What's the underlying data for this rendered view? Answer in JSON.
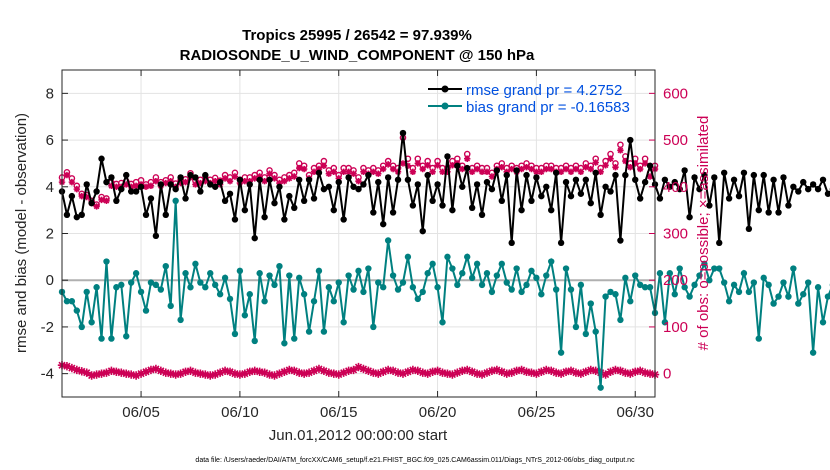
{
  "chart_data": {
    "type": "line",
    "title": "Tropics 25995 / 26542 = 97.939%",
    "subtitle": "RADIOSONDE_U_WIND_COMPONENT @ 150 hPa",
    "xlabel": "Jun.01,2012 00:00:00 start",
    "ylabel": "rmse and bias (model - observation)",
    "ylabel_right": "# of obs: o=possible; ×=assimilated",
    "xlim": [
      1,
      31
    ],
    "ylim": [
      -5,
      9
    ],
    "ylim_right": [
      -50,
      650
    ],
    "x_ticks": [
      5,
      10,
      15,
      20,
      25,
      30
    ],
    "x_tick_labels": [
      "06/05",
      "06/10",
      "06/15",
      "06/20",
      "06/25",
      "06/30"
    ],
    "y_ticks": [
      -4,
      -2,
      0,
      2,
      4,
      6,
      8
    ],
    "y_tick_labels": [
      "-4",
      "-2",
      "0",
      "2",
      "4",
      "6",
      "8"
    ],
    "y_right_ticks": [
      0,
      100,
      200,
      300,
      400,
      500,
      600
    ],
    "y_right_tick_labels": [
      "0",
      "100",
      "200",
      "300",
      "400",
      "500",
      "600"
    ],
    "legend": [
      "rmse grand pr = 4.2752",
      "bias grand pr = -0.16583"
    ],
    "footer": "data file: /Users/raeder/DAI/ATM_forcXX/CAM6_setup/f.e21.FHIST_BGC.f09_025.CAM6assim.011/Diags_NTrS_2012-06/obs_diag_output.nc",
    "colors": {
      "rmse": "#000000",
      "bias": "#008080",
      "counts": "#cc0055",
      "legend_text": "#0050e0",
      "zero_line": "#b0b0b0"
    },
    "x_start": 1.0,
    "x_step": 0.25,
    "series": [
      {
        "name": "rmse",
        "values": [
          3.8,
          2.8,
          3.6,
          2.7,
          2.8,
          4.1,
          3.3,
          3.8,
          5.2,
          4.2,
          4.4,
          3.4,
          3.9,
          4.5,
          3.8,
          3.8,
          4.0,
          2.8,
          3.5,
          1.9,
          4.1,
          2.8,
          4.1,
          3.9,
          4.4,
          3.5,
          4.5,
          4.4,
          3.8,
          4.5,
          4.1,
          4.0,
          4.2,
          3.4,
          3.7,
          2.6,
          4.3,
          3.0,
          4.1,
          1.8,
          4.3,
          2.7,
          4.3,
          3.3,
          4.0,
          2.6,
          3.6,
          3.1,
          4.3,
          3.4,
          4.3,
          3.5,
          4.6,
          3.9,
          4.0,
          3.0,
          4.2,
          2.6,
          4.4,
          4.0,
          3.9,
          4.1,
          4.5,
          2.9,
          4.2,
          2.4,
          4.4,
          2.9,
          4.3,
          6.3,
          4.3,
          3.2,
          4.1,
          2.1,
          4.5,
          3.4,
          4.1,
          3.2,
          5.3,
          3.0,
          4.9,
          4.0,
          4.8,
          3.1,
          4.1,
          2.8,
          4.2,
          3.9,
          4.7,
          3.4,
          4.5,
          1.6,
          4.7,
          3.0,
          4.5,
          3.4,
          4.4,
          3.6,
          4.0,
          3.0,
          4.6,
          1.6,
          4.2,
          3.6,
          4.3,
          3.7,
          4.3,
          3.3,
          4.6,
          2.8,
          4.0,
          3.8,
          4.5,
          1.7,
          4.5,
          6.0,
          4.3,
          3.5,
          4.2,
          4.9,
          4.1,
          3.5,
          4.3,
          4.0,
          4.2,
          3.9,
          4.7,
          2.7,
          4.4,
          3.9,
          4.5,
          3.2,
          4.4,
          1.6,
          4.6,
          3.5,
          4.3,
          3.6,
          4.6,
          2.2,
          4.5,
          3.0,
          4.5,
          2.9,
          4.3,
          2.9,
          4.4,
          3.2,
          4.0,
          3.8,
          4.2,
          3.9,
          4.1,
          3.9,
          4.3,
          3.7,
          3.9,
          4.4,
          4.0,
          3.3,
          4.5,
          2.4,
          4.0,
          3.6,
          3.9,
          2.8,
          5.8,
          4.2,
          3.0,
          3.8,
          4.6,
          1.5,
          4.5,
          3.6,
          4.6,
          3.6,
          4.4,
          2.6
        ]
      },
      {
        "name": "bias",
        "values": [
          -0.5,
          -0.9,
          -0.9,
          -1.3,
          -2.0,
          -0.5,
          -1.8,
          -0.3,
          -2.5,
          0.8,
          -2.5,
          -0.3,
          -0.2,
          -2.4,
          -0.1,
          0.3,
          -0.5,
          -1.3,
          -0.1,
          -0.2,
          -0.4,
          0.6,
          -1.1,
          3.4,
          -1.7,
          0.3,
          -0.3,
          0.7,
          -0.1,
          -0.3,
          0.3,
          -0.2,
          -0.6,
          0.1,
          -0.8,
          -2.3,
          0.4,
          -1.5,
          -0.6,
          -2.6,
          0.3,
          -0.9,
          0.2,
          -0.2,
          0.6,
          -2.7,
          0.2,
          -2.5,
          0.1,
          -0.6,
          -2.2,
          -0.9,
          0.4,
          -2.2,
          -0.3,
          -0.9,
          -0.1,
          -1.8,
          0.2,
          -0.4,
          0.4,
          -0.5,
          0.5,
          -2.0,
          -0.1,
          -0.3,
          1.7,
          0.2,
          -0.4,
          -0.1,
          1.0,
          -0.3,
          -0.8,
          -0.5,
          0.3,
          0.7,
          -0.3,
          -1.8,
          1.0,
          0.5,
          -0.2,
          0.3,
          1.0,
          0.1,
          0.7,
          -0.2,
          0.3,
          -0.5,
          0.2,
          0.7,
          -0.1,
          -0.4,
          0.5,
          -0.5,
          -0.2,
          0.4,
          0.1,
          -0.6,
          0.2,
          0.8,
          -0.4,
          -3.1,
          0.5,
          -0.4,
          -2.0,
          -0.2,
          -2.3,
          -1.0,
          -2.2,
          -4.6,
          -0.7,
          -0.5,
          -0.6,
          -1.7,
          0.1,
          -0.9,
          0.2,
          -0.2,
          -0.3,
          -0.3,
          -1.4,
          0.3,
          -1.8,
          0.3,
          -0.6,
          0.5,
          -0.3,
          -0.7,
          -0.2,
          0.2,
          0.7,
          0.0,
          0.5,
          0.5,
          -0.1,
          -0.9,
          -0.2,
          -0.5,
          0.3,
          -0.5,
          -0.1,
          -2.5,
          0.1,
          -0.2,
          -1.0,
          -0.7,
          -0.1,
          -0.7,
          0.5,
          -1.0,
          -0.6,
          -0.1,
          -3.1,
          -0.3,
          -1.8,
          -0.7,
          -0.2,
          -0.5,
          0.4,
          -0.4,
          -0.2,
          0.2,
          -0.1,
          -0.9,
          -0.3,
          -0.2,
          -0.5,
          -0.1,
          -0.1,
          -1.1,
          0.3,
          -0.8,
          -3.1,
          -0.8,
          0.1,
          -0.5,
          -0.4,
          0.4,
          -2.2,
          -1.9
        ]
      },
      {
        "name": "obs_possible",
        "values": [
          420,
          431,
          418,
          402,
          385,
          382,
          370,
          362,
          378,
          375,
          409,
          406,
          408,
          412,
          406,
          410,
          414,
          405,
          410,
          420,
          410,
          414,
          420,
          407,
          414,
          416,
          429,
          413,
          415,
          420,
          415,
          419,
          413,
          425,
          420,
          430,
          415,
          420,
          420,
          425,
          430,
          420,
          435,
          425,
          415,
          420,
          425,
          430,
          450,
          445,
          425,
          440,
          445,
          455,
          435,
          440,
          425,
          440,
          440,
          435,
          420,
          440,
          435,
          440,
          435,
          445,
          455,
          445,
          440,
          505,
          460,
          440,
          460,
          445,
          455,
          440,
          455,
          440,
          440,
          455,
          460,
          445,
          470,
          440,
          445,
          440,
          440,
          430,
          445,
          450,
          440,
          445,
          440,
          445,
          450,
          445,
          440,
          440,
          445,
          445,
          440,
          440,
          445,
          440,
          445,
          440,
          450,
          445,
          460,
          440,
          455,
          470,
          450,
          490,
          465,
          450,
          460,
          445,
          460,
          430,
          445,
          505,
          450,
          440,
          455,
          450,
          455,
          445,
          460,
          445,
          445,
          445,
          450,
          455,
          440,
          460,
          445,
          440,
          460,
          445,
          445,
          455,
          455,
          470,
          455,
          450,
          460,
          440,
          460,
          445,
          440,
          430,
          440,
          440,
          455,
          420,
          445,
          440,
          455,
          445,
          465,
          430,
          470,
          440,
          465,
          440,
          455,
          445,
          470,
          435,
          470,
          450,
          470,
          465,
          455,
          460,
          430
        ]
      },
      {
        "name": "obs_assimilated",
        "values": [
          410,
          425,
          410,
          395,
          380,
          378,
          365,
          358,
          372,
          370,
          402,
          400,
          400,
          405,
          400,
          402,
          405,
          400,
          402,
          412,
          402,
          408,
          412,
          400,
          408,
          410,
          420,
          405,
          408,
          412,
          408,
          412,
          405,
          418,
          412,
          422,
          408,
          412,
          412,
          418,
          422,
          412,
          428,
          418,
          408,
          412,
          418,
          422,
          440,
          438,
          418,
          432,
          438,
          445,
          428,
          432,
          418,
          432,
          432,
          428,
          412,
          432,
          428,
          432,
          428,
          438,
          448,
          438,
          432,
          450,
          445,
          432,
          450,
          438,
          446,
          432,
          446,
          432,
          432,
          446,
          450,
          438,
          460,
          432,
          438,
          432,
          432,
          422,
          438,
          442,
          432,
          438,
          432,
          438,
          442,
          438,
          432,
          432,
          438,
          438,
          432,
          432,
          438,
          432,
          438,
          432,
          442,
          438,
          452,
          432,
          446,
          460,
          442,
          478,
          455,
          442,
          450,
          438,
          450,
          422,
          438,
          484,
          442,
          432,
          446,
          442,
          446,
          438,
          450,
          438,
          438,
          438,
          442,
          446,
          432,
          450,
          438,
          432,
          450,
          438,
          438,
          446,
          446,
          460,
          446,
          442,
          450,
          432,
          450,
          438,
          432,
          422,
          432,
          432,
          446,
          412,
          438,
          432,
          446,
          438,
          455,
          422,
          460,
          432,
          455,
          432,
          446,
          438,
          460,
          428,
          460,
          442,
          460,
          455,
          446,
          450,
          422
        ]
      },
      {
        "name": "obs_low",
        "values": [
          18,
          16,
          12,
          8,
          5,
          2,
          -4,
          -2,
          0,
          2,
          6,
          4,
          2,
          0,
          -2,
          -4,
          0,
          4,
          8,
          10,
          6,
          2,
          0,
          -2,
          0,
          4,
          6,
          2,
          0,
          -2,
          -4,
          -2,
          2,
          6,
          4,
          0,
          -2,
          0,
          4,
          6,
          4,
          2,
          -2,
          -4,
          0,
          4,
          8,
          6,
          2,
          0,
          2,
          6,
          10,
          6,
          2,
          0,
          -2,
          2,
          6,
          8,
          14,
          10,
          6,
          2,
          0,
          4,
          8,
          6,
          2,
          0,
          4,
          8,
          6,
          2,
          0,
          4,
          6,
          2,
          0,
          -2,
          2,
          6,
          8,
          4,
          0,
          -2,
          2,
          6,
          8,
          4,
          0,
          2,
          6,
          8,
          4,
          2,
          0,
          4,
          8,
          6,
          2,
          0,
          4,
          6,
          2,
          0,
          4,
          8,
          6,
          2,
          -2,
          4,
          8,
          6,
          2,
          0,
          4,
          6,
          2,
          0,
          -2,
          2,
          6,
          8,
          4,
          0,
          2,
          6,
          4,
          0,
          -2,
          2,
          6,
          8,
          4,
          0,
          4,
          8,
          6,
          2,
          0,
          4,
          6,
          2,
          0,
          4,
          8,
          6,
          2,
          -2,
          2,
          6,
          8,
          4,
          0,
          2,
          6,
          4,
          0,
          -2,
          2,
          6,
          10,
          6,
          2,
          0,
          4,
          6,
          8,
          4,
          2,
          0,
          -2,
          -2,
          -4
        ]
      }
    ]
  }
}
